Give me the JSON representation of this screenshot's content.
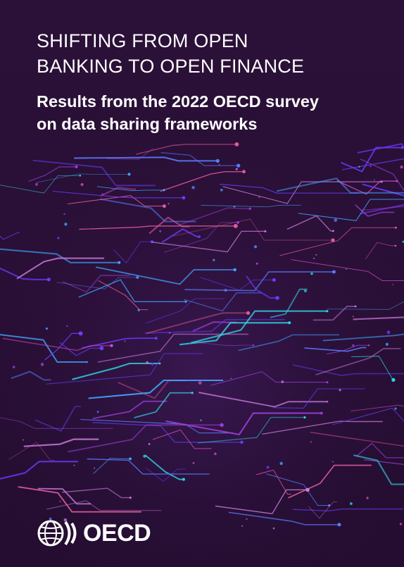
{
  "cover": {
    "title_lines": [
      "SHIFTING FROM OPEN",
      "BANKING TO OPEN FINANCE"
    ],
    "subtitle_lines": [
      "Results from the 2022 OECD survey",
      "on data sharing frameworks"
    ],
    "publisher": "OECD",
    "logo_icon": "oecd-globe-icon",
    "colors": {
      "background": "#2a1035",
      "text": "#ffffff",
      "line_palette": [
        "#9b3fd6",
        "#6a3cff",
        "#3fa4ff",
        "#2fd4e0",
        "#d04ac0",
        "#e05a9a",
        "#c87ad8",
        "#5a7cff"
      ]
    }
  }
}
